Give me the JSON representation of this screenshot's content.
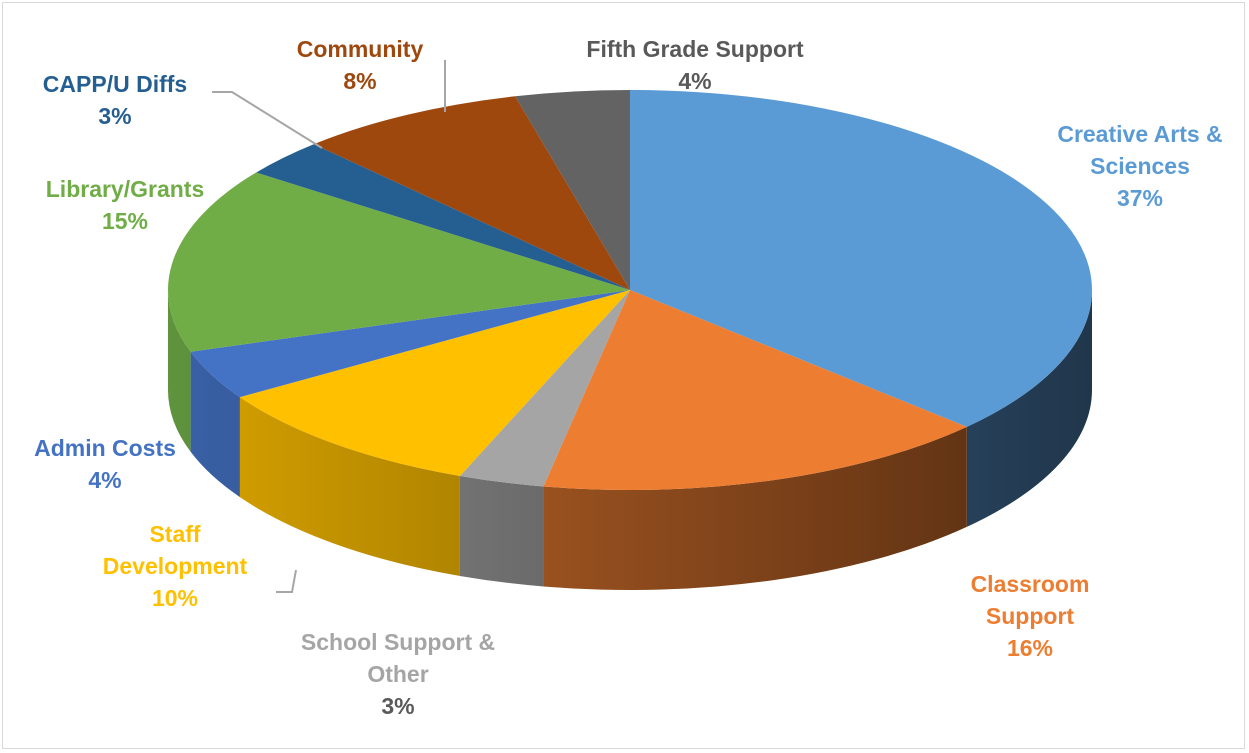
{
  "chart_data": {
    "type": "pie3d",
    "categories": [
      "Creative Arts & Sciences",
      "Classroom Support",
      "School Support & Other",
      "Staff Development",
      "Admin Costs",
      "Library/Grants",
      "CAPP/U Diffs",
      "Community",
      "Fifth Grade Support"
    ],
    "values": [
      37,
      16,
      3,
      10,
      4,
      15,
      3,
      8,
      4
    ],
    "value_labels": [
      "37%",
      "16%",
      "3%",
      "10%",
      "4%",
      "15%",
      "3%",
      "8%",
      "4%"
    ],
    "colors": [
      "#5b9bd5",
      "#ed7d31",
      "#a5a5a5",
      "#ffc000",
      "#4472c4",
      "#70ad47",
      "#255e91",
      "#9e480e",
      "#636363"
    ]
  }
}
